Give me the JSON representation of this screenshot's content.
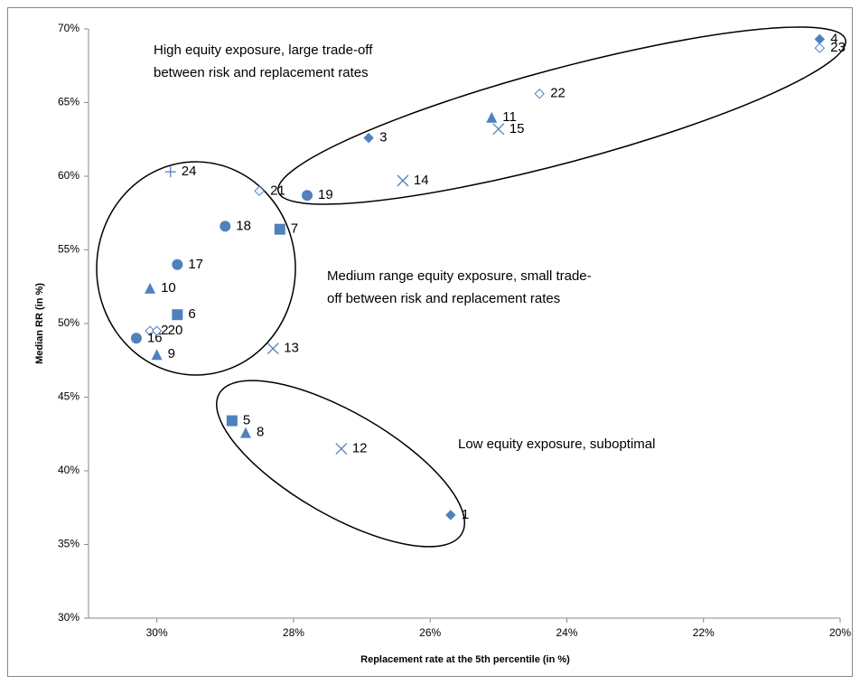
{
  "chart_data": {
    "type": "scatter",
    "x_label": "Replacement rate at the 5th percentile (in %)",
    "y_label": "Median RR (in %)",
    "xlim": [
      31,
      20
    ],
    "ylim": [
      30,
      70
    ],
    "xticks": [
      {
        "value": 30,
        "label": "30%"
      },
      {
        "value": 28,
        "label": "28%"
      },
      {
        "value": 26,
        "label": "26%"
      },
      {
        "value": 24,
        "label": "24%"
      },
      {
        "value": 22,
        "label": "22%"
      },
      {
        "value": 20,
        "label": "20%"
      }
    ],
    "yticks": [
      {
        "value": 30,
        "label": "30%"
      },
      {
        "value": 35,
        "label": "35%"
      },
      {
        "value": 40,
        "label": "40%"
      },
      {
        "value": 45,
        "label": "45%"
      },
      {
        "value": 50,
        "label": "50%"
      },
      {
        "value": 55,
        "label": "55%"
      },
      {
        "value": 60,
        "label": "60%"
      },
      {
        "value": 65,
        "label": "65%"
      },
      {
        "value": 70,
        "label": "70%"
      }
    ],
    "color": "#4f81bd",
    "points": [
      {
        "label": "1",
        "x": 25.7,
        "y": 37.0,
        "marker": "diamond"
      },
      {
        "label": "2",
        "x": 30.1,
        "y": 49.5,
        "marker": "open-diamond"
      },
      {
        "label": "3",
        "x": 26.9,
        "y": 62.6,
        "marker": "diamond"
      },
      {
        "label": "4",
        "x": 20.3,
        "y": 69.3,
        "marker": "diamond"
      },
      {
        "label": "5",
        "x": 28.9,
        "y": 43.4,
        "marker": "square"
      },
      {
        "label": "6",
        "x": 29.7,
        "y": 50.6,
        "marker": "square"
      },
      {
        "label": "7",
        "x": 28.2,
        "y": 56.4,
        "marker": "square"
      },
      {
        "label": "8",
        "x": 28.7,
        "y": 42.6,
        "marker": "triangle"
      },
      {
        "label": "9",
        "x": 30.0,
        "y": 47.9,
        "marker": "triangle"
      },
      {
        "label": "10",
        "x": 30.1,
        "y": 52.4,
        "marker": "triangle"
      },
      {
        "label": "11",
        "x": 25.1,
        "y": 64.0,
        "marker": "triangle"
      },
      {
        "label": "12",
        "x": 27.3,
        "y": 41.5,
        "marker": "x"
      },
      {
        "label": "13",
        "x": 28.3,
        "y": 48.3,
        "marker": "x"
      },
      {
        "label": "14",
        "x": 26.4,
        "y": 59.7,
        "marker": "x"
      },
      {
        "label": "15",
        "x": 25.0,
        "y": 63.2,
        "marker": "x"
      },
      {
        "label": "16",
        "x": 30.3,
        "y": 49.0,
        "marker": "circle"
      },
      {
        "label": "17",
        "x": 29.7,
        "y": 54.0,
        "marker": "circle"
      },
      {
        "label": "18",
        "x": 29.0,
        "y": 56.6,
        "marker": "circle"
      },
      {
        "label": "19",
        "x": 27.8,
        "y": 58.7,
        "marker": "circle"
      },
      {
        "label": "20",
        "x": 30.0,
        "y": 49.5,
        "marker": "open-diamond"
      },
      {
        "label": "21",
        "x": 28.5,
        "y": 59.0,
        "marker": "open-diamond"
      },
      {
        "label": "22",
        "x": 24.4,
        "y": 65.6,
        "marker": "open-diamond"
      },
      {
        "label": "23",
        "x": 20.3,
        "y": 68.7,
        "marker": "open-diamond"
      },
      {
        "label": "24",
        "x": 29.8,
        "y": 60.3,
        "marker": "plus"
      }
    ],
    "annotations": [
      [
        "High equity exposure, large trade-off",
        "between risk and replacement rates"
      ],
      [
        "Medium range equity exposure, small trade-",
        "off between risk and replacement rates"
      ],
      [
        "Low equity exposure, suboptimal"
      ]
    ]
  }
}
